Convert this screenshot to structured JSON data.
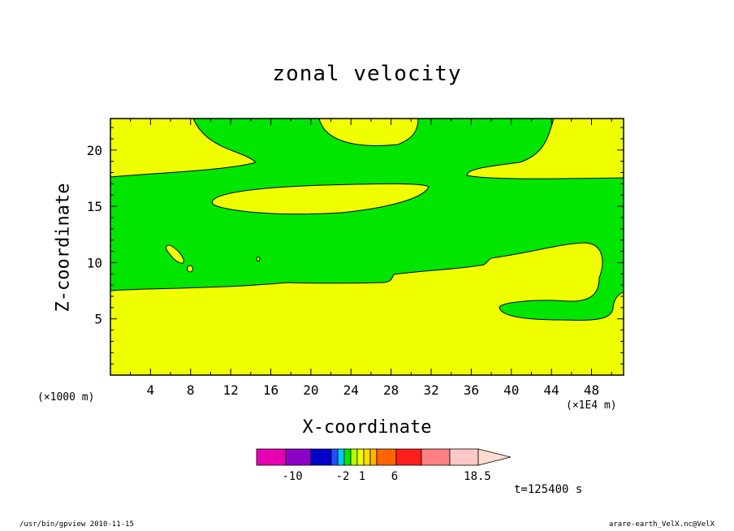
{
  "chart_data": {
    "type": "contour",
    "title": "zonal velocity",
    "xlabel": "X-coordinate",
    "ylabel": "Z-coordinate",
    "x_unit_left": "(×1000 m)",
    "x_unit_right": "(×1E4 m)",
    "xlim": [
      0,
      51.2
    ],
    "ylim": [
      0,
      22.8
    ],
    "x_ticks": [
      "4",
      "8",
      "12",
      "16",
      "20",
      "24",
      "28",
      "32",
      "36",
      "40",
      "44",
      "48"
    ],
    "y_ticks": [
      "5",
      "10",
      "15",
      "20"
    ],
    "grid": false,
    "regions": [
      {
        "level": "positive (1 to 6)",
        "color": "#f0ff00",
        "description": "upper and lower layers"
      },
      {
        "level": "negative (-1 to 1)",
        "color": "#00e600",
        "description": "middle band"
      }
    ],
    "colorbar": {
      "colors": [
        "#e600b4",
        "#8c00c8",
        "#0000c8",
        "#1e50ff",
        "#00c8ff",
        "#00e600",
        "#b4ff00",
        "#f0ff00",
        "#ffdc00",
        "#ffb400",
        "#ff6400",
        "#ff1e1e",
        "#ff8080",
        "#ffc8c8",
        "#ffdcd2"
      ],
      "tick_labels": [
        "-10",
        "-2",
        "1",
        "6",
        "18.5"
      ]
    },
    "annotation": "t=125400 s"
  },
  "footer": {
    "left": "/usr/bin/gpview   2010-11-15",
    "right": "arare-earth_VelX.nc@VelX"
  }
}
